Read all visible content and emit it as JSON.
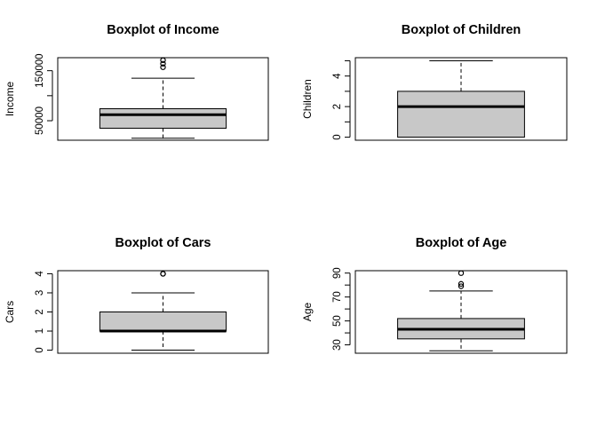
{
  "colors": {
    "box_fill": "#c8c8c8",
    "stroke": "#000000",
    "background": "#ffffff"
  },
  "chart_data": [
    {
      "type": "boxplot",
      "title": "Boxplot of Income",
      "ylabel": "Income",
      "yticks": [
        50000,
        100000,
        150000
      ],
      "ytick_labels": [
        "50000",
        "",
        "150000"
      ],
      "ylim": [
        11000,
        176000
      ],
      "stats": {
        "min": 15000,
        "q1": 35000,
        "median": 62000,
        "q3": 74000,
        "max": 135000
      },
      "outliers": [
        157000,
        164000,
        171000
      ],
      "grid": false
    },
    {
      "type": "boxplot",
      "title": "Boxplot of Children",
      "ylabel": "Children",
      "yticks": [
        0,
        1,
        2,
        3,
        4,
        5
      ],
      "ytick_labels": [
        "0",
        "",
        "2",
        "",
        "4",
        ""
      ],
      "ylim": [
        -0.2,
        5.2
      ],
      "stats": {
        "min": 0,
        "q1": 0,
        "median": 2,
        "q3": 3,
        "max": 5
      },
      "outliers": [],
      "grid": false
    },
    {
      "type": "boxplot",
      "title": "Boxplot of Cars",
      "ylabel": "Cars",
      "yticks": [
        0,
        1,
        2,
        3,
        4
      ],
      "ytick_labels": [
        "0",
        "1",
        "2",
        "3",
        "4"
      ],
      "ylim": [
        -0.16,
        4.16
      ],
      "stats": {
        "min": 0,
        "q1": 1,
        "median": 1,
        "q3": 2,
        "max": 3
      },
      "outliers": [
        4,
        4
      ],
      "grid": false
    },
    {
      "type": "boxplot",
      "title": "Boxplot of Age",
      "ylabel": "Age",
      "yticks": [
        30,
        40,
        50,
        60,
        70,
        80,
        90
      ],
      "ytick_labels": [
        "30",
        "",
        "50",
        "",
        "70",
        "",
        "90"
      ],
      "ylim": [
        23,
        92
      ],
      "stats": {
        "min": 25,
        "q1": 35,
        "median": 43,
        "q3": 52,
        "max": 75
      },
      "outliers": [
        79,
        81,
        90
      ],
      "grid": false
    }
  ]
}
